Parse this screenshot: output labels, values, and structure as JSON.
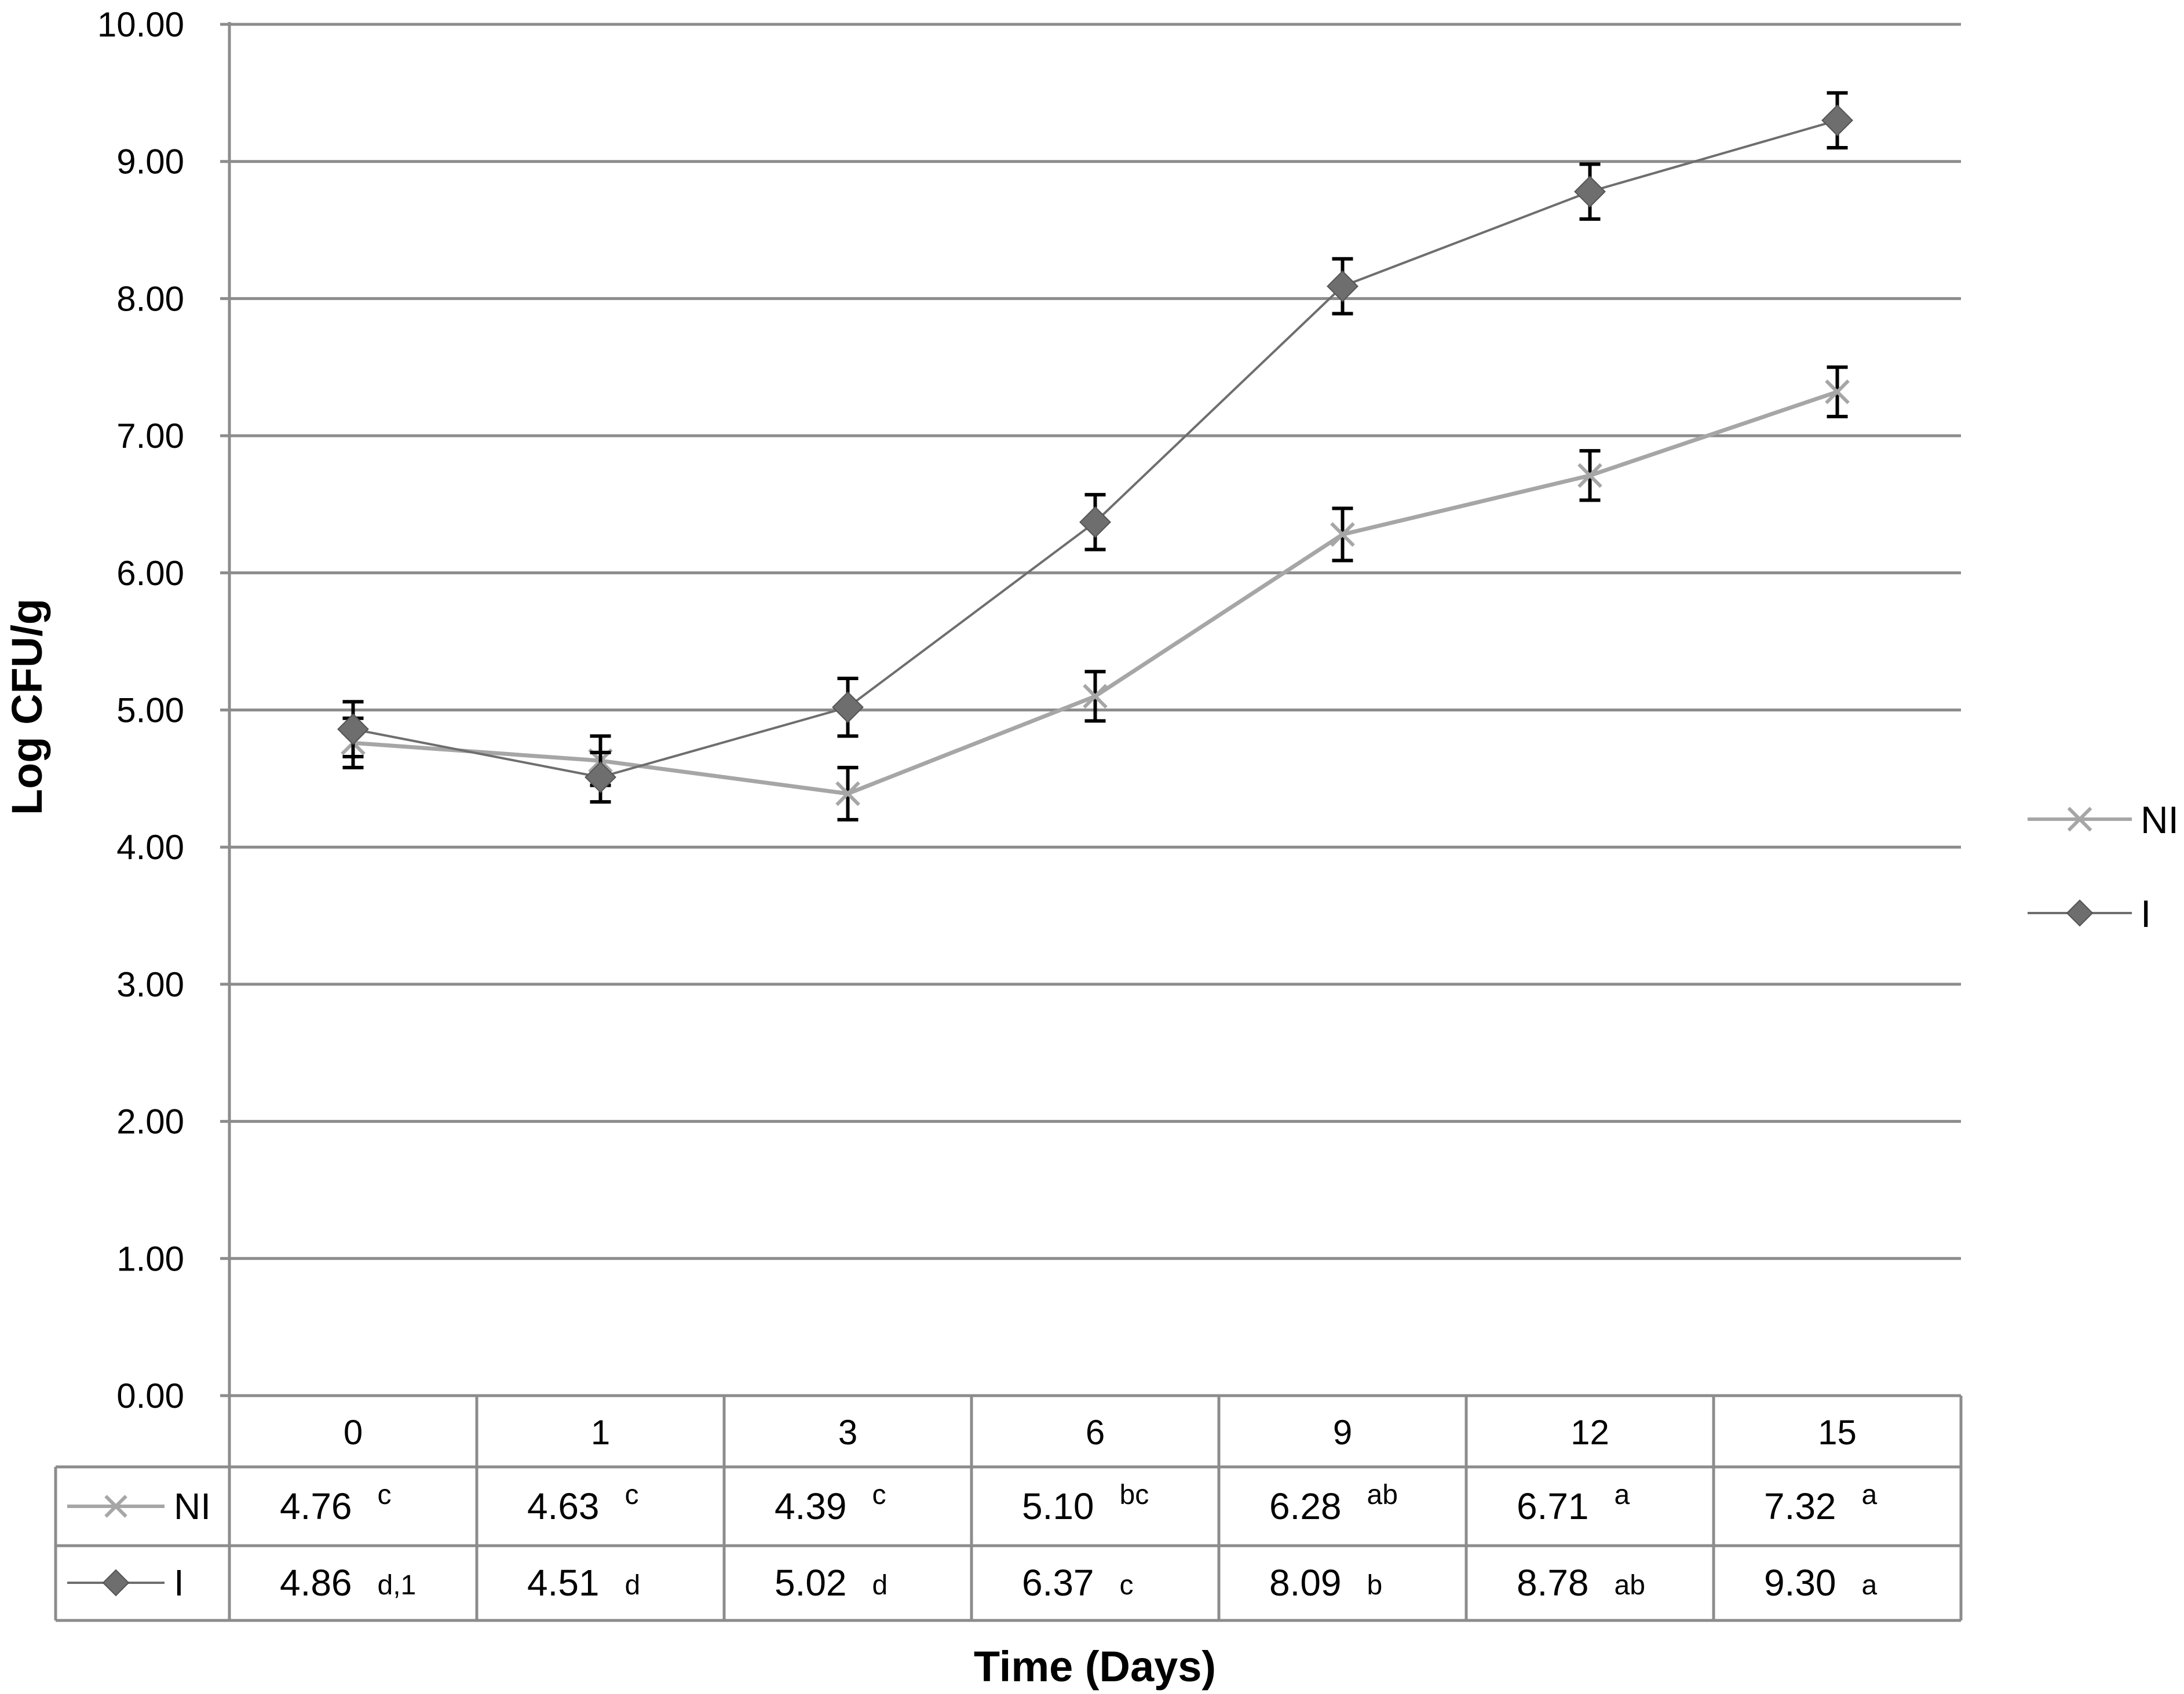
{
  "chart_data": {
    "type": "line",
    "xlabel": "Time (Days)",
    "ylabel": "Log CFU/g",
    "ylim": [
      0,
      10
    ],
    "y_ticks": [
      "0.00",
      "1.00",
      "2.00",
      "3.00",
      "4.00",
      "5.00",
      "6.00",
      "7.00",
      "8.00",
      "9.00",
      "10.00"
    ],
    "categories": [
      "0",
      "1",
      "3",
      "6",
      "9",
      "12",
      "15"
    ],
    "grid": true,
    "legend_position": "right",
    "series": [
      {
        "name": "NI",
        "marker": "x",
        "color": "#a6a6a6",
        "values": [
          4.76,
          4.63,
          4.39,
          5.1,
          6.28,
          6.71,
          7.32
        ],
        "error": [
          0.18,
          0.18,
          0.19,
          0.18,
          0.19,
          0.18,
          0.18
        ],
        "labels": [
          "4.76",
          "4.63",
          "4.39",
          "5.10",
          "6.28",
          "6.71",
          "7.32"
        ],
        "letters": [
          "c",
          "c",
          "c",
          "bc",
          "ab",
          "a",
          "a"
        ]
      },
      {
        "name": "I",
        "marker": "diamond",
        "color": "#6e6e6e",
        "values": [
          4.86,
          4.51,
          5.02,
          6.37,
          8.09,
          8.78,
          9.3
        ],
        "error": [
          0.2,
          0.18,
          0.21,
          0.2,
          0.2,
          0.2,
          0.2
        ],
        "labels": [
          "4.86",
          "4.51",
          "5.02",
          "6.37",
          "8.09",
          "8.78",
          "9.30"
        ],
        "letters": [
          "d,1",
          "d",
          "d",
          "c",
          "b",
          "ab",
          "a"
        ]
      }
    ]
  }
}
